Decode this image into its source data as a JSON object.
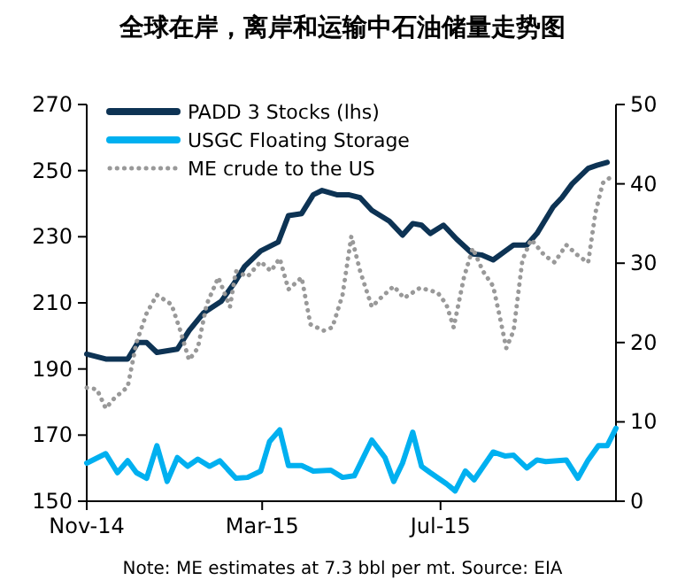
{
  "chart_data": {
    "type": "line",
    "title": "全球在岸，离岸和运输中石油储量走势图",
    "xlim": [
      "2014-11-01",
      "2015-10-29"
    ],
    "xticks": [
      {
        "value": "2014-11-01",
        "label": "Nov-14"
      },
      {
        "value": "2015-03-01",
        "label": "Mar-15"
      },
      {
        "value": "2015-07-01",
        "label": "Jul-15"
      }
    ],
    "ylim": [
      150,
      270
    ],
    "yticks": [
      150,
      170,
      190,
      210,
      230,
      250,
      270
    ],
    "y2lim": [
      0,
      50
    ],
    "y2ticks": [
      0,
      10,
      20,
      30,
      40,
      50
    ],
    "grid": false,
    "legend": "top left",
    "annotations": [
      "Note: ME estimates at 7.3 bbl per mt. Source: EIA"
    ],
    "series": [
      {
        "name": "PADD 3 Stocks (lhs)",
        "color": "#0d3354",
        "line_style": "solid",
        "x": [
          "2014-11-01",
          "2014-11-14",
          "2014-11-29",
          "2014-12-06",
          "2014-12-12",
          "2014-12-19",
          "2015-01-02",
          "2015-01-10",
          "2015-01-20",
          "2015-02-01",
          "2015-02-10",
          "2015-02-17",
          "2015-02-28",
          "2015-03-12",
          "2015-03-19",
          "2015-03-28",
          "2015-04-05",
          "2015-04-11",
          "2015-04-21",
          "2015-04-29",
          "2015-05-07",
          "2015-05-15",
          "2015-05-27",
          "2015-06-05",
          "2015-06-12",
          "2015-06-18",
          "2015-06-24",
          "2015-07-03",
          "2015-07-12",
          "2015-07-23",
          "2015-07-29",
          "2015-08-06",
          "2015-08-20",
          "2015-08-29",
          "2015-09-05",
          "2015-09-16",
          "2015-09-22",
          "2015-09-29",
          "2015-10-10",
          "2015-10-16",
          "2015-10-23"
        ],
        "values": [
          194.5,
          193,
          193,
          198,
          198,
          195,
          196,
          201.6,
          207,
          210.5,
          216,
          221,
          225.7,
          228.4,
          236.4,
          237,
          242.7,
          244,
          242.7,
          242.7,
          241.8,
          238,
          234.7,
          230.5,
          234,
          233.5,
          231,
          233.5,
          229.3,
          224.8,
          224.5,
          223,
          227.5,
          227.5,
          231,
          239,
          241.8,
          246,
          250.7,
          251.6,
          252.5
        ]
      },
      {
        "name": "USGC Floating Storage",
        "color": "#00b0f0",
        "line_style": "solid",
        "axis": "y2",
        "x": [
          "2014-11-01",
          "2014-11-14",
          "2014-11-22",
          "2014-11-29",
          "2014-12-05",
          "2014-12-12",
          "2014-12-19",
          "2014-12-26",
          "2015-01-02",
          "2015-01-09",
          "2015-01-16",
          "2015-01-24",
          "2015-01-31",
          "2015-02-11",
          "2015-02-19",
          "2015-02-28",
          "2015-03-06",
          "2015-03-13",
          "2015-03-19",
          "2015-03-28",
          "2015-04-05",
          "2015-04-17",
          "2015-04-25",
          "2015-05-03",
          "2015-05-15",
          "2015-05-24",
          "2015-05-30",
          "2015-06-05",
          "2015-06-12",
          "2015-06-18",
          "2015-06-24",
          "2015-07-05",
          "2015-07-11",
          "2015-07-18",
          "2015-07-24",
          "2015-08-06",
          "2015-08-14",
          "2015-08-20",
          "2015-08-29",
          "2015-09-05",
          "2015-09-11",
          "2015-09-25",
          "2015-10-03",
          "2015-10-10",
          "2015-10-17",
          "2015-10-23",
          "2015-10-29"
        ],
        "values": [
          4.8,
          6.0,
          3.6,
          5.1,
          3.6,
          2.9,
          7.0,
          2.5,
          5.5,
          4.4,
          5.3,
          4.4,
          5.1,
          2.9,
          3.0,
          3.8,
          7.5,
          9.0,
          4.5,
          4.5,
          3.8,
          3.9,
          3.0,
          3.2,
          7.7,
          5.5,
          2.5,
          4.8,
          8.7,
          4.4,
          3.6,
          2.2,
          1.3,
          3.8,
          2.7,
          6.2,
          5.7,
          5.8,
          4.2,
          5.2,
          5.0,
          5.2,
          2.9,
          5.2,
          7.0,
          7.0,
          9.2
        ]
      },
      {
        "name": "ME crude to the US",
        "color": "#999999",
        "line_style": "dotted",
        "axis": "y2",
        "x": [
          "2014-11-01",
          "2014-11-08",
          "2014-11-14",
          "2014-11-20",
          "2014-11-29",
          "2014-12-05",
          "2014-12-12",
          "2014-12-19",
          "2014-12-29",
          "2015-01-04",
          "2015-01-10",
          "2015-01-16",
          "2015-01-22",
          "2015-01-30",
          "2015-02-07",
          "2015-02-11",
          "2015-02-19",
          "2015-02-28",
          "2015-03-07",
          "2015-03-13",
          "2015-03-19",
          "2015-03-28",
          "2015-04-03",
          "2015-04-12",
          "2015-04-18",
          "2015-04-25",
          "2015-05-01",
          "2015-05-07",
          "2015-05-15",
          "2015-05-21",
          "2015-05-30",
          "2015-06-06",
          "2015-06-17",
          "2015-06-29",
          "2015-07-05",
          "2015-07-10",
          "2015-07-17",
          "2015-07-23",
          "2015-07-30",
          "2015-08-06",
          "2015-08-10",
          "2015-08-15",
          "2015-08-20",
          "2015-08-26",
          "2015-09-01",
          "2015-09-10",
          "2015-09-17",
          "2015-09-25",
          "2015-10-04",
          "2015-10-10",
          "2015-10-15",
          "2015-10-20",
          "2015-10-28"
        ],
        "values": [
          14.3,
          14.1,
          11.7,
          13.0,
          14.4,
          20.0,
          23.7,
          26.0,
          24.8,
          21.5,
          17.8,
          19.3,
          24.8,
          28.2,
          24.5,
          29,
          28.3,
          30.2,
          29,
          30.6,
          26.7,
          28.2,
          22.3,
          21.5,
          21.9,
          26.0,
          33.4,
          29,
          24.5,
          25.6,
          27.1,
          25.6,
          26.9,
          26.3,
          24.8,
          21.9,
          28.2,
          31.9,
          29,
          27.1,
          23.7,
          19.3,
          21.5,
          30.4,
          33,
          31,
          30.1,
          32.3,
          30.8,
          30.1,
          36.4,
          40.1,
          41.2
        ]
      }
    ]
  }
}
